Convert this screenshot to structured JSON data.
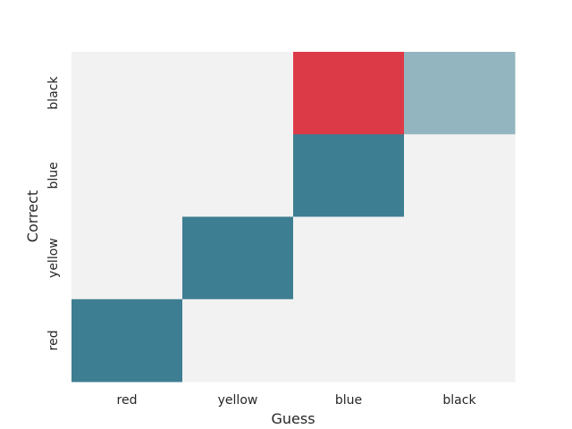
{
  "chart_data": {
    "type": "heatmap",
    "title": "",
    "xlabel": "Guess",
    "ylabel": "Correct",
    "x_categories": [
      "red",
      "yellow",
      "blue",
      "black"
    ],
    "y_categories": [
      "black",
      "blue",
      "yellow",
      "red"
    ],
    "cells": [
      [
        "#f2f2f2",
        "#f2f2f2",
        "#dc3a46",
        "#93b5bf"
      ],
      [
        "#f2f2f2",
        "#f2f2f2",
        "#3e7e92",
        "#f2f2f2"
      ],
      [
        "#f2f2f2",
        "#3e7e92",
        "#f2f2f2",
        "#f2f2f2"
      ],
      [
        "#3e7e92",
        "#f2f2f2",
        "#f2f2f2",
        "#f2f2f2"
      ]
    ],
    "grid": false,
    "colorbar": false
  }
}
